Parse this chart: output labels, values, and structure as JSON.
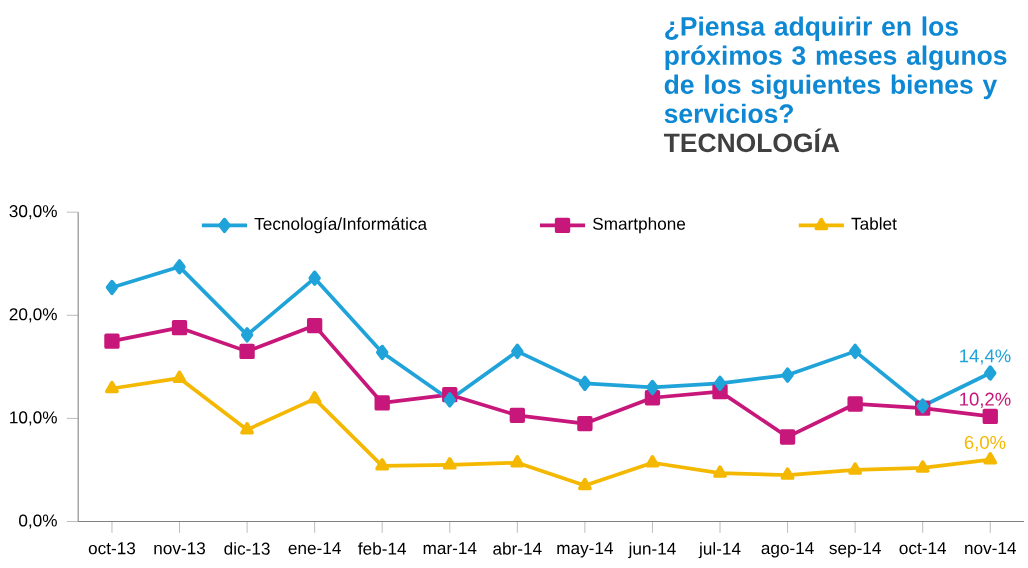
{
  "chart_data": {
    "type": "line",
    "title": "¿Piensa adquirir en los próximos 3 meses algunos de los siguientes bienes y servicios?",
    "subtitle": "TECNOLOGÍA",
    "categories": [
      "oct-13",
      "nov-13",
      "dic-13",
      "ene-14",
      "feb-14",
      "mar-14",
      "abr-14",
      "may-14",
      "jun-14",
      "jul-14",
      "ago-14",
      "sep-14",
      "oct-14",
      "nov-14"
    ],
    "series": [
      {
        "name": "Tecnología/Informática",
        "color": "#1fa3d9",
        "marker": "diamond",
        "values": [
          22.7,
          24.7,
          18.1,
          23.6,
          16.4,
          11.8,
          16.5,
          13.4,
          13.0,
          13.4,
          14.2,
          16.5,
          11.2,
          14.4
        ],
        "value_labels": [
          null,
          null,
          null,
          null,
          null,
          null,
          null,
          null,
          null,
          null,
          null,
          null,
          null,
          "14,4%"
        ]
      },
      {
        "name": "Smartphone",
        "color": "#c8177a",
        "marker": "square",
        "values": [
          17.5,
          18.8,
          16.5,
          19.0,
          11.5,
          12.3,
          10.3,
          9.5,
          12.0,
          12.6,
          8.2,
          11.4,
          11.0,
          10.2
        ],
        "value_labels": [
          null,
          null,
          null,
          null,
          null,
          null,
          null,
          null,
          null,
          null,
          null,
          null,
          null,
          "10,2%"
        ]
      },
      {
        "name": "Tablet",
        "color": "#f5b800",
        "marker": "triangle",
        "values": [
          12.9,
          13.9,
          8.9,
          11.9,
          5.4,
          5.5,
          5.7,
          3.5,
          5.7,
          4.7,
          4.5,
          5.0,
          5.2,
          6.0
        ],
        "value_labels": [
          null,
          null,
          null,
          null,
          null,
          null,
          null,
          null,
          null,
          null,
          null,
          null,
          null,
          "6,0%"
        ]
      }
    ],
    "ylim": [
      0,
      30
    ],
    "yticks": [
      {
        "value": 0,
        "label": "0,0%"
      },
      {
        "value": 10,
        "label": "10,0%"
      },
      {
        "value": 20,
        "label": "20,0%"
      },
      {
        "value": 30,
        "label": "30,0%"
      }
    ],
    "grid": false,
    "legend": "top",
    "line_style": "solid"
  }
}
